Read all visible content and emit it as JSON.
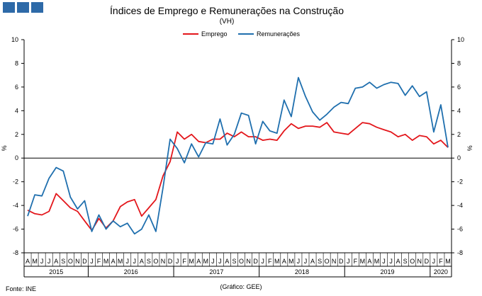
{
  "header": {
    "title": "Índices de Emprego  e Remunerações na Construção",
    "subtitle": "(VH)"
  },
  "footer": {
    "source": "Fonte: INE",
    "credit": "(Gráfico: GEE)"
  },
  "colors": {
    "emprego": "#e3161b",
    "remuneracoes": "#1f6fae",
    "logo": "#2e6aa8"
  },
  "chart_data": {
    "type": "line",
    "title": "Índices de Emprego  e Remunerações na Construção",
    "subtitle": "(VH)",
    "ylabel_left": "%",
    "ylabel_right": "%",
    "ylim": [
      -8,
      10
    ],
    "yticks": [
      -8,
      -6,
      -4,
      -2,
      0,
      2,
      4,
      6,
      8,
      10
    ],
    "grid": false,
    "legend": "top-center",
    "x_month_labels": [
      "A",
      "M",
      "J",
      "J",
      "A",
      "S",
      "O",
      "N",
      "D",
      "J",
      "F",
      "M",
      "A",
      "M",
      "J",
      "J",
      "A",
      "S",
      "O",
      "N",
      "D",
      "J",
      "F",
      "M",
      "A",
      "M",
      "J",
      "J",
      "A",
      "S",
      "O",
      "N",
      "D",
      "J",
      "F",
      "M",
      "A",
      "M",
      "J",
      "J",
      "A",
      "S",
      "O",
      "N",
      "D",
      "J",
      "F",
      "M",
      "A",
      "M",
      "J",
      "J",
      "A",
      "S",
      "O",
      "N",
      "D",
      "J",
      "F",
      "M"
    ],
    "x_year_groups": [
      {
        "label": "2015",
        "months": 9
      },
      {
        "label": "2016",
        "months": 12
      },
      {
        "label": "2017",
        "months": 12
      },
      {
        "label": "2018",
        "months": 12
      },
      {
        "label": "2019",
        "months": 12
      },
      {
        "label": "2020",
        "months": 3
      }
    ],
    "series": [
      {
        "name": "Emprego",
        "values": [
          -4.4,
          -4.7,
          -4.8,
          -4.5,
          -3.0,
          -3.6,
          -4.2,
          -4.5,
          -5.3,
          -6.1,
          -5.1,
          -5.9,
          -5.3,
          -4.1,
          -3.7,
          -3.5,
          -4.9,
          -4.2,
          -3.5,
          -1.5,
          -0.3,
          2.2,
          1.6,
          2.0,
          1.4,
          1.3,
          1.6,
          1.6,
          2.1,
          1.8,
          2.2,
          1.8,
          1.8,
          1.5,
          1.6,
          1.5,
          2.3,
          2.9,
          2.5,
          2.7,
          2.7,
          2.6,
          3.0,
          2.2,
          2.1,
          2.0,
          2.5,
          3.0,
          2.9,
          2.6,
          2.4,
          2.2,
          1.8,
          2.0,
          1.5,
          1.9,
          1.8,
          1.2,
          1.5,
          0.9
        ]
      },
      {
        "name": "Remunerações",
        "values": [
          -4.9,
          -3.1,
          -3.2,
          -1.7,
          -0.8,
          -1.1,
          -3.3,
          -4.3,
          -3.6,
          -6.2,
          -4.8,
          -6.0,
          -5.3,
          -5.8,
          -5.5,
          -6.4,
          -6.0,
          -4.8,
          -6.2,
          -2.5,
          1.6,
          0.8,
          -0.4,
          1.2,
          0.1,
          1.3,
          1.2,
          3.3,
          1.1,
          2.0,
          3.8,
          3.6,
          1.2,
          3.1,
          2.3,
          2.1,
          4.9,
          3.5,
          6.8,
          5.2,
          3.9,
          3.2,
          3.7,
          4.3,
          4.7,
          4.6,
          5.9,
          6.0,
          6.4,
          5.9,
          6.2,
          6.4,
          6.3,
          5.3,
          6.1,
          5.2,
          5.6,
          2.2,
          4.5,
          0.9
        ]
      }
    ]
  }
}
